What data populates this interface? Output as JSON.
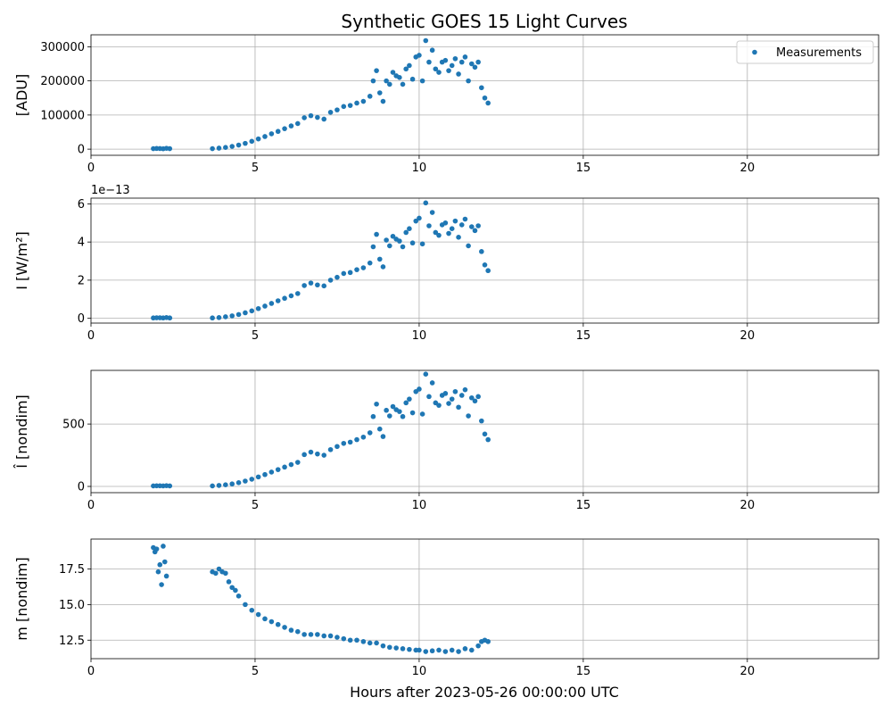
{
  "chart_data": {
    "type": "scatter",
    "title": "Synthetic GOES 15 Light Curves",
    "xlabel": "Hours after 2023-05-26 00:00:00 UTC",
    "xlim": [
      0,
      24
    ],
    "xticks": [
      0,
      5,
      10,
      15,
      20
    ],
    "grid": true,
    "marker_color": "#1f77b4",
    "legend": {
      "label": "Measurements",
      "placement": "top-right",
      "panel": 0
    },
    "panels": [
      {
        "ylabel": "[ADU]",
        "ylim": [
          -18000,
          335000
        ],
        "yticks": [
          0,
          100000,
          200000,
          300000
        ],
        "offset_text": "",
        "series": [
          {
            "name": "Measurements",
            "x": [
              1.9,
              2.0,
              2.1,
              2.2,
              2.3,
              2.4,
              3.7,
              3.9,
              4.1,
              4.3,
              4.5,
              4.7,
              4.9,
              5.1,
              5.3,
              5.5,
              5.7,
              5.9,
              6.1,
              6.3,
              6.5,
              6.7,
              6.9,
              7.1,
              7.3,
              7.5,
              7.7,
              7.9,
              8.1,
              8.3,
              8.5,
              8.6,
              8.7,
              8.8,
              8.9,
              9.0,
              9.1,
              9.2,
              9.3,
              9.4,
              9.5,
              9.6,
              9.7,
              9.8,
              9.9,
              10.0,
              10.1,
              10.2,
              10.3,
              10.4,
              10.5,
              10.6,
              10.7,
              10.8,
              10.9,
              11.0,
              11.1,
              11.2,
              11.3,
              11.4,
              11.5,
              11.6,
              11.7,
              11.8,
              11.9,
              12.0,
              12.1
            ],
            "y": [
              1500,
              2000,
              1800,
              1200,
              2500,
              1500,
              1500,
              3000,
              5000,
              8000,
              12000,
              17000,
              23000,
              30000,
              37000,
              45000,
              52000,
              60000,
              68000,
              75000,
              92000,
              98000,
              93000,
              88000,
              108000,
              115000,
              125000,
              128000,
              135000,
              140000,
              155000,
              200000,
              230000,
              165000,
              140000,
              200000,
              190000,
              225000,
              215000,
              210000,
              190000,
              235000,
              245000,
              205000,
              270000,
              275000,
              200000,
              318000,
              255000,
              290000,
              235000,
              225000,
              255000,
              260000,
              230000,
              245000,
              265000,
              220000,
              255000,
              270000,
              200000,
              250000,
              240000,
              255000,
              180000,
              150000,
              135000
            ]
          }
        ]
      },
      {
        "ylabel": "I [W/m²]",
        "ylim": [
          -0.25,
          6.3
        ],
        "yticks": [
          0,
          2,
          4,
          6
        ],
        "offset_text": "1e−13",
        "series": [
          {
            "name": "Measurements",
            "x": [
              1.9,
              2.0,
              2.1,
              2.2,
              2.3,
              2.4,
              3.7,
              3.9,
              4.1,
              4.3,
              4.5,
              4.7,
              4.9,
              5.1,
              5.3,
              5.5,
              5.7,
              5.9,
              6.1,
              6.3,
              6.5,
              6.7,
              6.9,
              7.1,
              7.3,
              7.5,
              7.7,
              7.9,
              8.1,
              8.3,
              8.5,
              8.6,
              8.7,
              8.8,
              8.9,
              9.0,
              9.1,
              9.2,
              9.3,
              9.4,
              9.5,
              9.6,
              9.7,
              9.8,
              9.9,
              10.0,
              10.1,
              10.2,
              10.3,
              10.4,
              10.5,
              10.6,
              10.7,
              10.8,
              10.9,
              11.0,
              11.1,
              11.2,
              11.3,
              11.4,
              11.5,
              11.6,
              11.7,
              11.8,
              11.9,
              12.0,
              12.1
            ],
            "y": [
              0.02,
              0.03,
              0.03,
              0.02,
              0.04,
              0.02,
              0.02,
              0.04,
              0.08,
              0.13,
              0.2,
              0.29,
              0.39,
              0.51,
              0.64,
              0.78,
              0.92,
              1.05,
              1.18,
              1.3,
              1.72,
              1.85,
              1.75,
              1.7,
              2.0,
              2.15,
              2.35,
              2.4,
              2.55,
              2.65,
              2.9,
              3.75,
              4.4,
              3.1,
              2.7,
              4.1,
              3.8,
              4.3,
              4.15,
              4.05,
              3.75,
              4.5,
              4.7,
              3.95,
              5.1,
              5.25,
              3.9,
              6.05,
              4.85,
              5.55,
              4.5,
              4.35,
              4.9,
              5.0,
              4.45,
              4.7,
              5.1,
              4.25,
              4.9,
              5.2,
              3.8,
              4.8,
              4.6,
              4.85,
              3.5,
              2.8,
              2.5
            ]
          }
        ]
      },
      {
        "ylabel": "Î [nondim]",
        "ylim": [
          -50,
          930
        ],
        "yticks": [
          0,
          500
        ],
        "offset_text": "",
        "series": [
          {
            "name": "Measurements",
            "x": [
              1.9,
              2.0,
              2.1,
              2.2,
              2.3,
              2.4,
              3.7,
              3.9,
              4.1,
              4.3,
              4.5,
              4.7,
              4.9,
              5.1,
              5.3,
              5.5,
              5.7,
              5.9,
              6.1,
              6.3,
              6.5,
              6.7,
              6.9,
              7.1,
              7.3,
              7.5,
              7.7,
              7.9,
              8.1,
              8.3,
              8.5,
              8.6,
              8.7,
              8.8,
              8.9,
              9.0,
              9.1,
              9.2,
              9.3,
              9.4,
              9.5,
              9.6,
              9.7,
              9.8,
              9.9,
              10.0,
              10.1,
              10.2,
              10.3,
              10.4,
              10.5,
              10.6,
              10.7,
              10.8,
              10.9,
              11.0,
              11.1,
              11.2,
              11.3,
              11.4,
              11.5,
              11.6,
              11.7,
              11.8,
              11.9,
              12.0,
              12.1
            ],
            "y": [
              4,
              5,
              5,
              4,
              6,
              4,
              4,
              8,
              13,
              20,
              30,
              43,
              58,
              76,
              95,
              115,
              135,
              155,
              175,
              193,
              255,
              275,
              260,
              250,
              295,
              320,
              345,
              355,
              375,
              395,
              430,
              560,
              660,
              460,
              400,
              610,
              565,
              640,
              615,
              600,
              560,
              670,
              700,
              590,
              760,
              780,
              580,
              900,
              720,
              830,
              670,
              650,
              730,
              745,
              665,
              700,
              760,
              635,
              730,
              775,
              565,
              710,
              685,
              720,
              525,
              420,
              375
            ]
          }
        ]
      },
      {
        "ylabel": "m [nondim]",
        "ylim": [
          11.2,
          19.6
        ],
        "yticks": [
          12.5,
          15.0,
          17.5
        ],
        "offset_text": "",
        "series": [
          {
            "name": "Measurements",
            "x": [
              1.9,
              1.95,
              2.0,
              2.05,
              2.1,
              2.15,
              2.2,
              2.25,
              2.3,
              3.7,
              3.8,
              3.9,
              4.0,
              4.1,
              4.2,
              4.3,
              4.4,
              4.5,
              4.7,
              4.9,
              5.1,
              5.3,
              5.5,
              5.7,
              5.9,
              6.1,
              6.3,
              6.5,
              6.7,
              6.9,
              7.1,
              7.3,
              7.5,
              7.7,
              7.9,
              8.1,
              8.3,
              8.5,
              8.7,
              8.9,
              9.1,
              9.3,
              9.5,
              9.7,
              9.9,
              10.0,
              10.2,
              10.4,
              10.6,
              10.8,
              11.0,
              11.2,
              11.4,
              11.6,
              11.8,
              11.9,
              12.0,
              12.1
            ],
            "y": [
              19.0,
              18.7,
              18.9,
              17.3,
              17.8,
              16.4,
              19.1,
              18.0,
              17.0,
              17.3,
              17.2,
              17.5,
              17.3,
              17.2,
              16.6,
              16.2,
              16.0,
              15.6,
              15.0,
              14.6,
              14.3,
              14.0,
              13.8,
              13.6,
              13.4,
              13.2,
              13.1,
              12.9,
              12.9,
              12.9,
              12.8,
              12.8,
              12.7,
              12.6,
              12.5,
              12.5,
              12.4,
              12.3,
              12.3,
              12.1,
              12.0,
              11.95,
              11.9,
              11.85,
              11.8,
              11.8,
              11.7,
              11.75,
              11.8,
              11.7,
              11.8,
              11.7,
              11.9,
              11.8,
              12.1,
              12.4,
              12.5,
              12.4
            ]
          }
        ]
      }
    ]
  }
}
